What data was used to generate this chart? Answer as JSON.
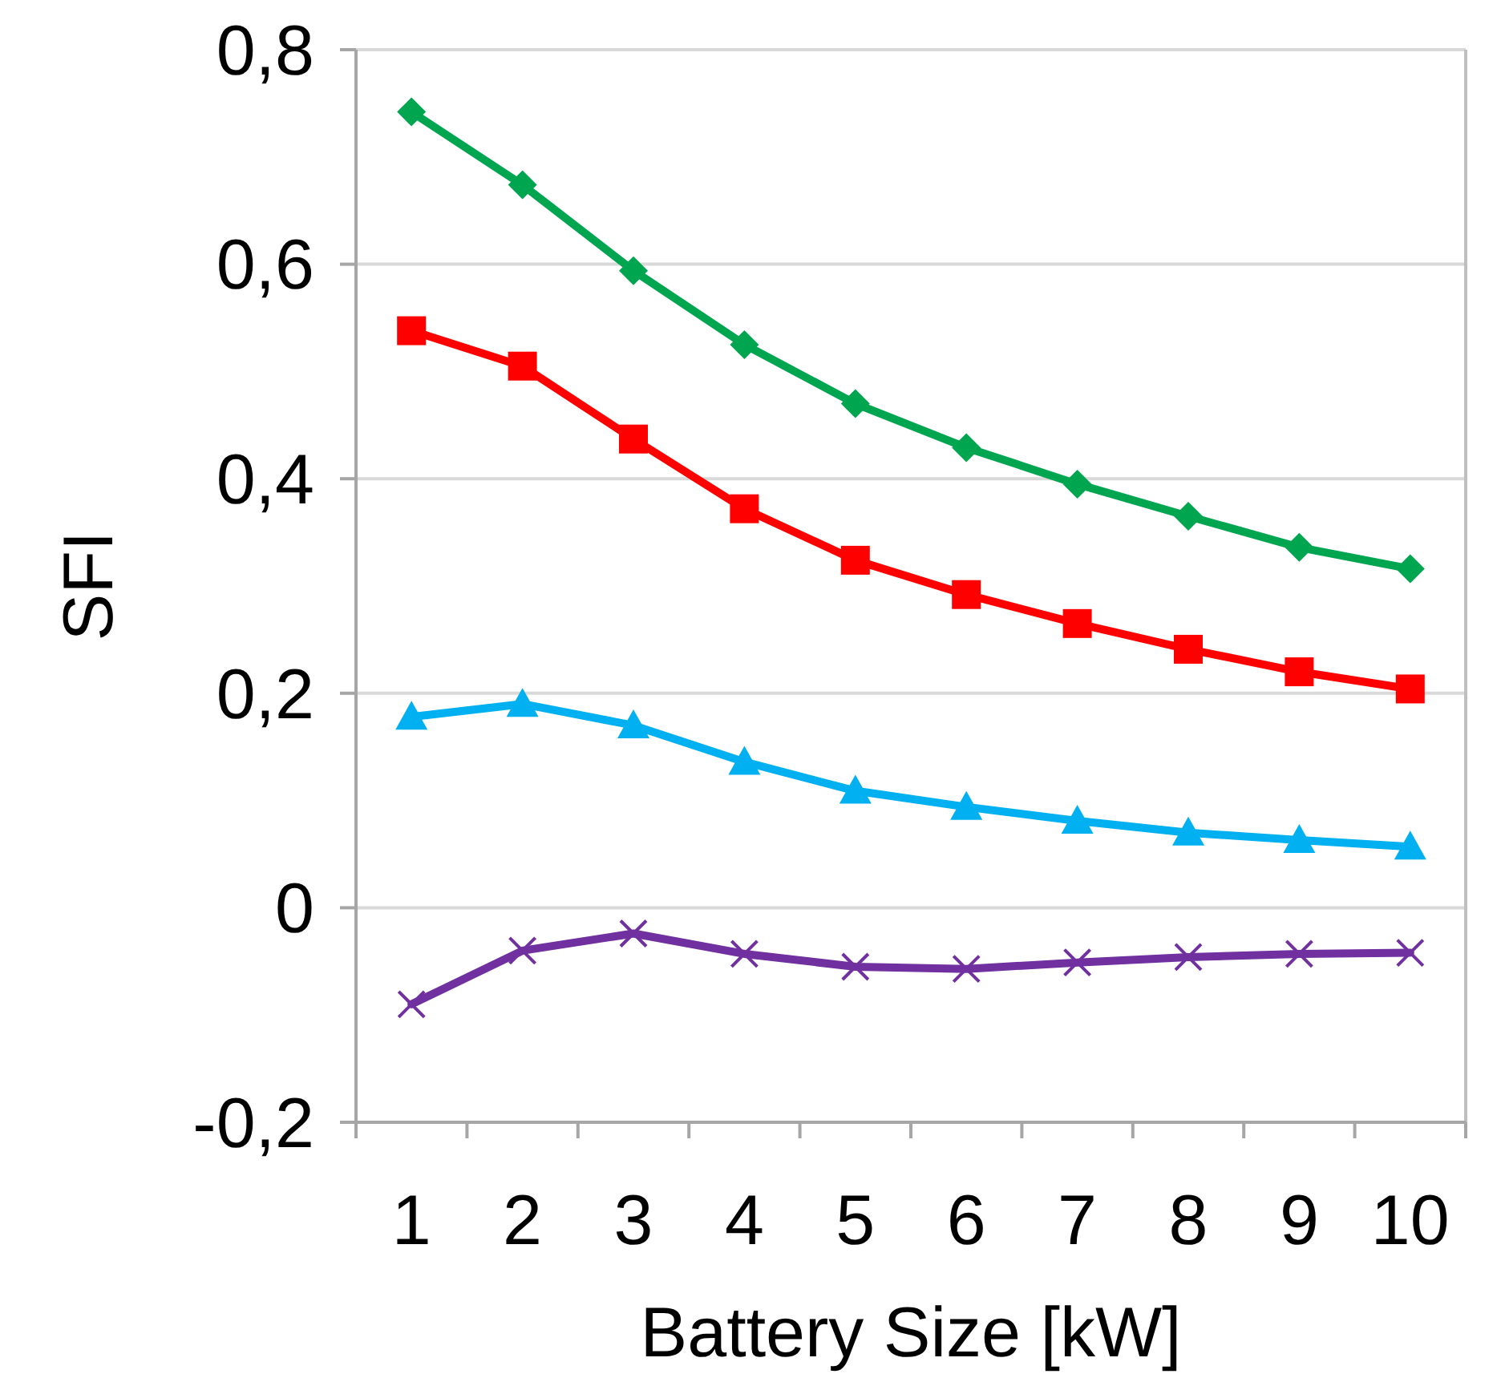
{
  "chart_data": {
    "type": "line",
    "xlabel": "Battery Size [kW]",
    "ylabel": "SFI",
    "categories": [
      "1",
      "2",
      "3",
      "4",
      "5",
      "6",
      "7",
      "8",
      "9",
      "10"
    ],
    "ylim": [
      -0.2,
      0.8
    ],
    "yticks": [
      {
        "value": -0.2,
        "label": "-0,2"
      },
      {
        "value": 0,
        "label": "0"
      },
      {
        "value": 0.2,
        "label": "0,2"
      },
      {
        "value": 0.4,
        "label": "0,4"
      },
      {
        "value": 0.6,
        "label": "0,6"
      },
      {
        "value": 0.8,
        "label": "0,8"
      }
    ],
    "grid": "y",
    "line_style": "solid",
    "series": [
      {
        "color": "#00a550",
        "marker": "diamond",
        "values": [
          0.742,
          0.674,
          0.594,
          0.525,
          0.47,
          0.429,
          0.395,
          0.365,
          0.336,
          0.316
        ]
      },
      {
        "color": "#ff0000",
        "marker": "square",
        "values": [
          0.538,
          0.505,
          0.437,
          0.372,
          0.324,
          0.292,
          0.265,
          0.241,
          0.22,
          0.204
        ]
      },
      {
        "color": "#00b0f0",
        "marker": "triangle",
        "values": [
          0.178,
          0.19,
          0.17,
          0.136,
          0.109,
          0.094,
          0.081,
          0.07,
          0.063,
          0.057
        ]
      },
      {
        "color": "#7030a0",
        "marker": "cross",
        "values": [
          -0.09,
          -0.04,
          -0.024,
          -0.043,
          -0.055,
          -0.057,
          -0.051,
          -0.046,
          -0.043,
          -0.042
        ]
      }
    ]
  }
}
